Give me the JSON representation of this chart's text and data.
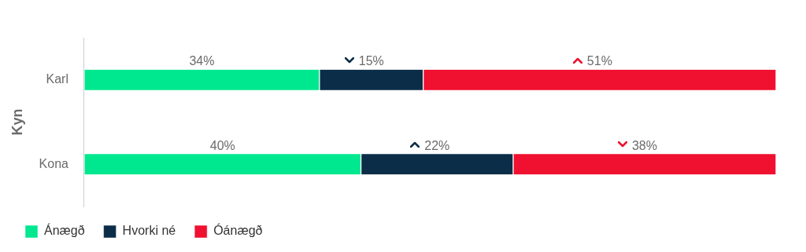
{
  "chart_data": {
    "type": "bar",
    "orientation": "horizontal",
    "stacked": true,
    "ylabel": "Kyn",
    "categories": [
      "Karl",
      "Kona"
    ],
    "series": [
      {
        "name": "Ánægð",
        "color": "#00e88f",
        "values": [
          34,
          40
        ],
        "value_labels": [
          "34%",
          "40%"
        ]
      },
      {
        "name": "Hvorki né",
        "color": "#0b2d48",
        "values": [
          15,
          22
        ],
        "value_labels": [
          "15%",
          "22%"
        ]
      },
      {
        "name": "Óánægð",
        "color": "#f0102f",
        "values": [
          51,
          38
        ],
        "value_labels": [
          "51%",
          "38%"
        ]
      }
    ],
    "legend": "bottom left"
  }
}
